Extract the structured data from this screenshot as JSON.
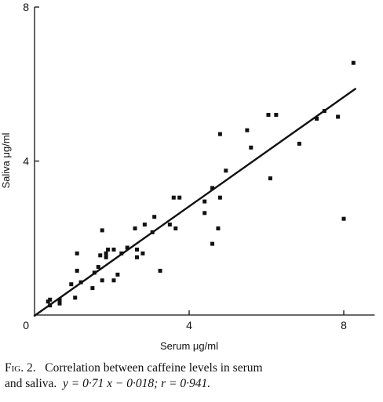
{
  "chart_data": {
    "type": "scatter",
    "title": "",
    "xlabel": "Serum μg/ml",
    "ylabel": "Saliva μg/ml",
    "xlim": [
      0,
      8.8
    ],
    "ylim": [
      0,
      8
    ],
    "xticks": [
      0,
      4,
      8
    ],
    "yticks": [
      4,
      8
    ],
    "x_tick_labels": [
      "0",
      "4",
      "8"
    ],
    "y_tick_labels": [
      "4",
      "8"
    ],
    "grid": false,
    "points": [
      {
        "x": 0.35,
        "y": 0.35
      },
      {
        "x": 0.4,
        "y": 0.25
      },
      {
        "x": 0.4,
        "y": 0.4
      },
      {
        "x": 0.65,
        "y": 0.3
      },
      {
        "x": 0.65,
        "y": 0.35
      },
      {
        "x": 0.65,
        "y": 0.4
      },
      {
        "x": 0.95,
        "y": 0.8
      },
      {
        "x": 1.05,
        "y": 0.45
      },
      {
        "x": 1.1,
        "y": 1.15
      },
      {
        "x": 1.1,
        "y": 1.6
      },
      {
        "x": 1.2,
        "y": 0.85
      },
      {
        "x": 1.5,
        "y": 0.7
      },
      {
        "x": 1.55,
        "y": 1.1
      },
      {
        "x": 1.65,
        "y": 1.25
      },
      {
        "x": 1.7,
        "y": 1.55
      },
      {
        "x": 1.75,
        "y": 2.2
      },
      {
        "x": 1.75,
        "y": 0.9
      },
      {
        "x": 1.85,
        "y": 1.5
      },
      {
        "x": 1.85,
        "y": 1.6
      },
      {
        "x": 1.9,
        "y": 1.7
      },
      {
        "x": 2.05,
        "y": 1.7
      },
      {
        "x": 2.05,
        "y": 0.9
      },
      {
        "x": 2.15,
        "y": 1.05
      },
      {
        "x": 2.25,
        "y": 1.6
      },
      {
        "x": 2.4,
        "y": 1.75
      },
      {
        "x": 2.6,
        "y": 2.25
      },
      {
        "x": 2.65,
        "y": 1.5
      },
      {
        "x": 2.65,
        "y": 1.7
      },
      {
        "x": 2.8,
        "y": 1.6
      },
      {
        "x": 2.85,
        "y": 2.35
      },
      {
        "x": 3.05,
        "y": 2.15
      },
      {
        "x": 3.1,
        "y": 2.55
      },
      {
        "x": 3.25,
        "y": 1.15
      },
      {
        "x": 3.5,
        "y": 2.35
      },
      {
        "x": 3.6,
        "y": 3.05
      },
      {
        "x": 3.65,
        "y": 2.25
      },
      {
        "x": 3.75,
        "y": 3.05
      },
      {
        "x": 4.4,
        "y": 2.65
      },
      {
        "x": 4.4,
        "y": 2.95
      },
      {
        "x": 4.6,
        "y": 1.85
      },
      {
        "x": 4.6,
        "y": 3.3
      },
      {
        "x": 4.75,
        "y": 2.25
      },
      {
        "x": 4.8,
        "y": 3.05
      },
      {
        "x": 4.8,
        "y": 4.7
      },
      {
        "x": 4.95,
        "y": 3.75
      },
      {
        "x": 5.5,
        "y": 4.8
      },
      {
        "x": 5.6,
        "y": 4.35
      },
      {
        "x": 6.05,
        "y": 5.2
      },
      {
        "x": 6.1,
        "y": 3.55
      },
      {
        "x": 6.25,
        "y": 5.2
      },
      {
        "x": 6.85,
        "y": 4.45
      },
      {
        "x": 7.3,
        "y": 5.1
      },
      {
        "x": 7.5,
        "y": 5.3
      },
      {
        "x": 7.85,
        "y": 5.15
      },
      {
        "x": 8.0,
        "y": 2.5
      },
      {
        "x": 8.25,
        "y": 6.55
      }
    ],
    "regression_line": {
      "slope": 0.71,
      "intercept": -0.018,
      "x_range": [
        0,
        8.3
      ]
    }
  },
  "caption": {
    "label": "Fig. 2.",
    "line1_text": "Correlation between caffeine levels in serum",
    "line2_text": "and saliva.",
    "equation": "y = 0·71 x − 0·018; r = 0·941."
  }
}
